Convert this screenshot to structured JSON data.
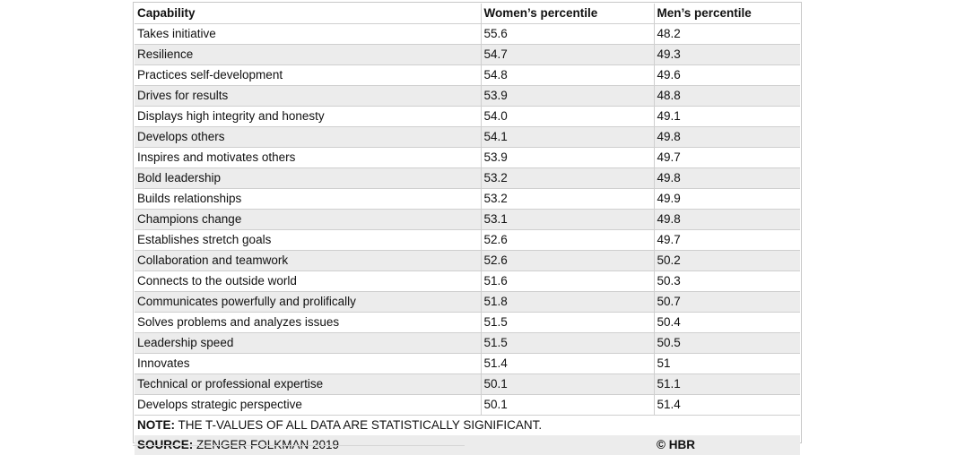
{
  "table": {
    "headers": [
      "Capability",
      "Women’s percentile",
      "Men’s percentile"
    ],
    "rows": [
      [
        "Takes initiative",
        "55.6",
        "48.2"
      ],
      [
        "Resilience",
        "54.7",
        "49.3"
      ],
      [
        "Practices self-development",
        "54.8",
        "49.6"
      ],
      [
        "Drives for results",
        "53.9",
        "48.8"
      ],
      [
        "Displays high integrity and honesty",
        "54.0",
        "49.1"
      ],
      [
        "Develops others",
        "54.1",
        "49.8"
      ],
      [
        "Inspires and motivates others",
        "53.9",
        "49.7"
      ],
      [
        "Bold leadership",
        "53.2",
        "49.8"
      ],
      [
        "Builds relationships",
        "53.2",
        "49.9"
      ],
      [
        "Champions change",
        "53.1",
        "49.8"
      ],
      [
        "Establishes stretch goals",
        "52.6",
        "49.7"
      ],
      [
        "Collaboration and teamwork",
        "52.6",
        "50.2"
      ],
      [
        "Connects to the outside world",
        "51.6",
        "50.3"
      ],
      [
        "Communicates powerfully and prolifically",
        "51.8",
        "50.7"
      ],
      [
        "Solves problems and analyzes issues",
        "51.5",
        "50.4"
      ],
      [
        "Leadership speed",
        "51.5",
        "50.5"
      ],
      [
        "Innovates",
        "51.4",
        "51"
      ],
      [
        "Technical or professional expertise",
        "50.1",
        "51.1"
      ],
      [
        "Develops strategic perspective",
        "50.1",
        "51.4"
      ]
    ]
  },
  "footer": {
    "note_label": "NOTE:",
    "note_text": " THE T-VALUES OF ALL DATA ARE STATISTICALLY SIGNIFICANT.",
    "source_label": "SOURCE:",
    "source_text": " ZENGER FOLKMAN 2019",
    "credit": "© HBR"
  }
}
